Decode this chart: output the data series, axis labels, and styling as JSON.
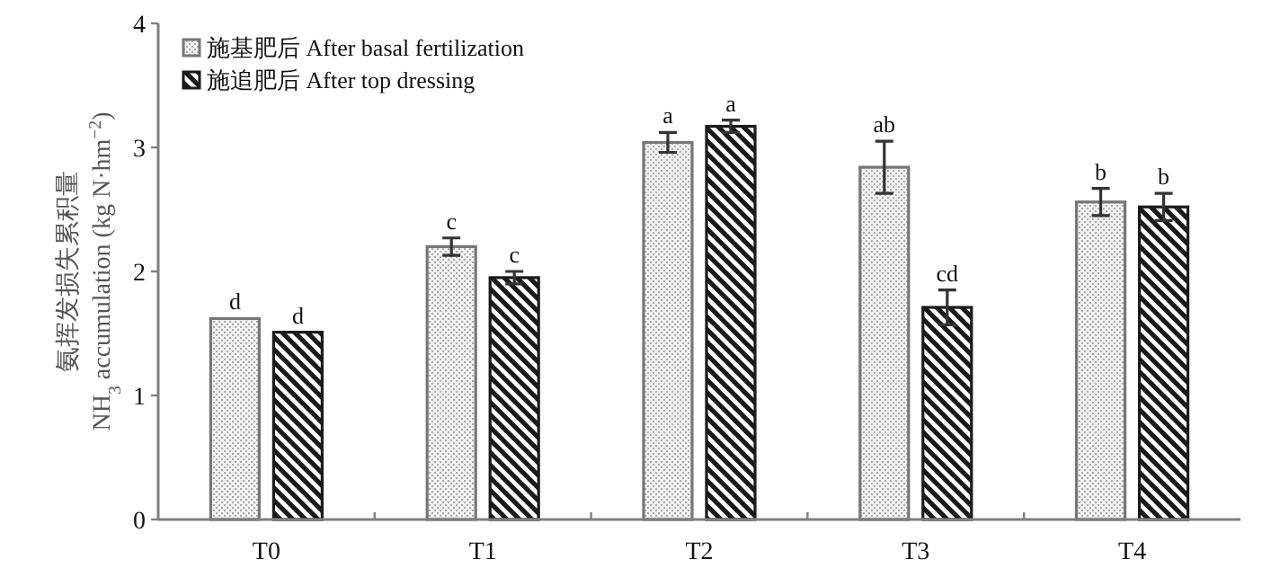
{
  "chart_data": {
    "type": "bar",
    "ylabel": "氨挥发损失累积量\nNH$_{3}$ accumulation (kg N·hm$^{−2}$)",
    "categories": [
      "T0",
      "T1",
      "T2",
      "T3",
      "T4"
    ],
    "ylim": [
      0,
      4
    ],
    "yticks": [
      0,
      1,
      2,
      3,
      4
    ],
    "grid": false,
    "legend": "top left",
    "series": [
      {
        "name": "施基肥后 After basal fertilization",
        "color": "#777777",
        "values": [
          1.62,
          2.2,
          3.04,
          2.84,
          2.56
        ],
        "errors": [
          null,
          0.07,
          0.08,
          0.21,
          0.11
        ],
        "value_labels": [
          "d",
          "c",
          "a",
          "ab",
          "b"
        ]
      },
      {
        "name": "施追肥后 After top dressing",
        "color": "#1a1a1a",
        "values": [
          1.51,
          1.95,
          3.17,
          1.71,
          2.52
        ],
        "errors": [
          null,
          0.05,
          0.05,
          0.14,
          0.11
        ],
        "value_labels": [
          "d",
          "c",
          "a",
          "cd",
          "b"
        ]
      }
    ]
  }
}
